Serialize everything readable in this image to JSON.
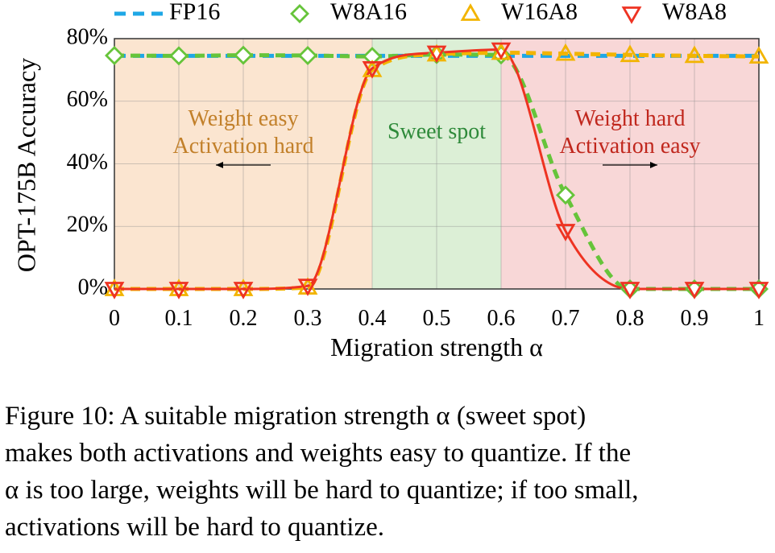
{
  "chart_data": {
    "type": "line",
    "xlabel": "Migration strength α",
    "ylabel": "OPT-175B Accuracy",
    "x": [
      0,
      0.1,
      0.2,
      0.3,
      0.4,
      0.5,
      0.6,
      0.7,
      0.8,
      0.9,
      1
    ],
    "x_tick_labels": [
      "0",
      "0.1",
      "0.2",
      "0.3",
      "0.4",
      "0.5",
      "0.6",
      "0.7",
      "0.8",
      "0.9",
      "1"
    ],
    "xlim": [
      0,
      1
    ],
    "ylim": [
      0,
      80
    ],
    "y_ticks": [
      0,
      20,
      40,
      60,
      80
    ],
    "y_tick_labels": [
      "0%",
      "20%",
      "40%",
      "60%",
      "80%"
    ],
    "grid": "on",
    "legend_position": "top",
    "series": [
      {
        "name": "FP16",
        "color": "#1ea7e6",
        "style": "dashed",
        "marker": "none",
        "values": [
          74.5,
          74.5,
          74.5,
          74.5,
          74.5,
          74.5,
          74.5,
          74.5,
          74.5,
          74.5,
          74.5
        ]
      },
      {
        "name": "W8A16",
        "color": "#66c43a",
        "style": "dashed",
        "marker": "diamond",
        "values": [
          74.6,
          74.5,
          74.7,
          74.6,
          74.3,
          74.9,
          74.8,
          30.0,
          0.0,
          0.0,
          0.0
        ]
      },
      {
        "name": "W16A8",
        "color": "#f2b400",
        "style": "dashed",
        "marker": "triangle-up",
        "values": [
          0.0,
          0.0,
          0.0,
          0.5,
          70.0,
          75.0,
          75.5,
          75.2,
          74.8,
          74.5,
          74.3
        ]
      },
      {
        "name": "W8A8",
        "color": "#ee3322",
        "style": "solid",
        "marker": "triangle-down",
        "values": [
          0.0,
          0.0,
          0.0,
          1.0,
          70.5,
          75.5,
          76.5,
          18.5,
          0.0,
          0.0,
          0.0
        ]
      }
    ],
    "regions": [
      {
        "from": 0,
        "to": 0.4,
        "color": "#fbe5d0",
        "line1": "Weight easy",
        "line2": "Activation hard",
        "text_color": "#c2802a",
        "arrow": "left"
      },
      {
        "from": 0.4,
        "to": 0.6,
        "color": "#dcefd6",
        "line1": "Sweet spot",
        "line2": "",
        "text_color": "#2e8a3a",
        "arrow": "none"
      },
      {
        "from": 0.6,
        "to": 1,
        "color": "#f8d7d7",
        "line1": "Weight hard",
        "line2": "Activation easy",
        "text_color": "#c0271d",
        "arrow": "right"
      }
    ]
  },
  "caption": {
    "lines": [
      "Figure 10: A suitable migration strength α (sweet spot)",
      "makes both activations and weights easy to quantize. If the",
      "α is too large, weights will be hard to quantize; if too small,",
      "activations will be hard to quantize."
    ]
  }
}
